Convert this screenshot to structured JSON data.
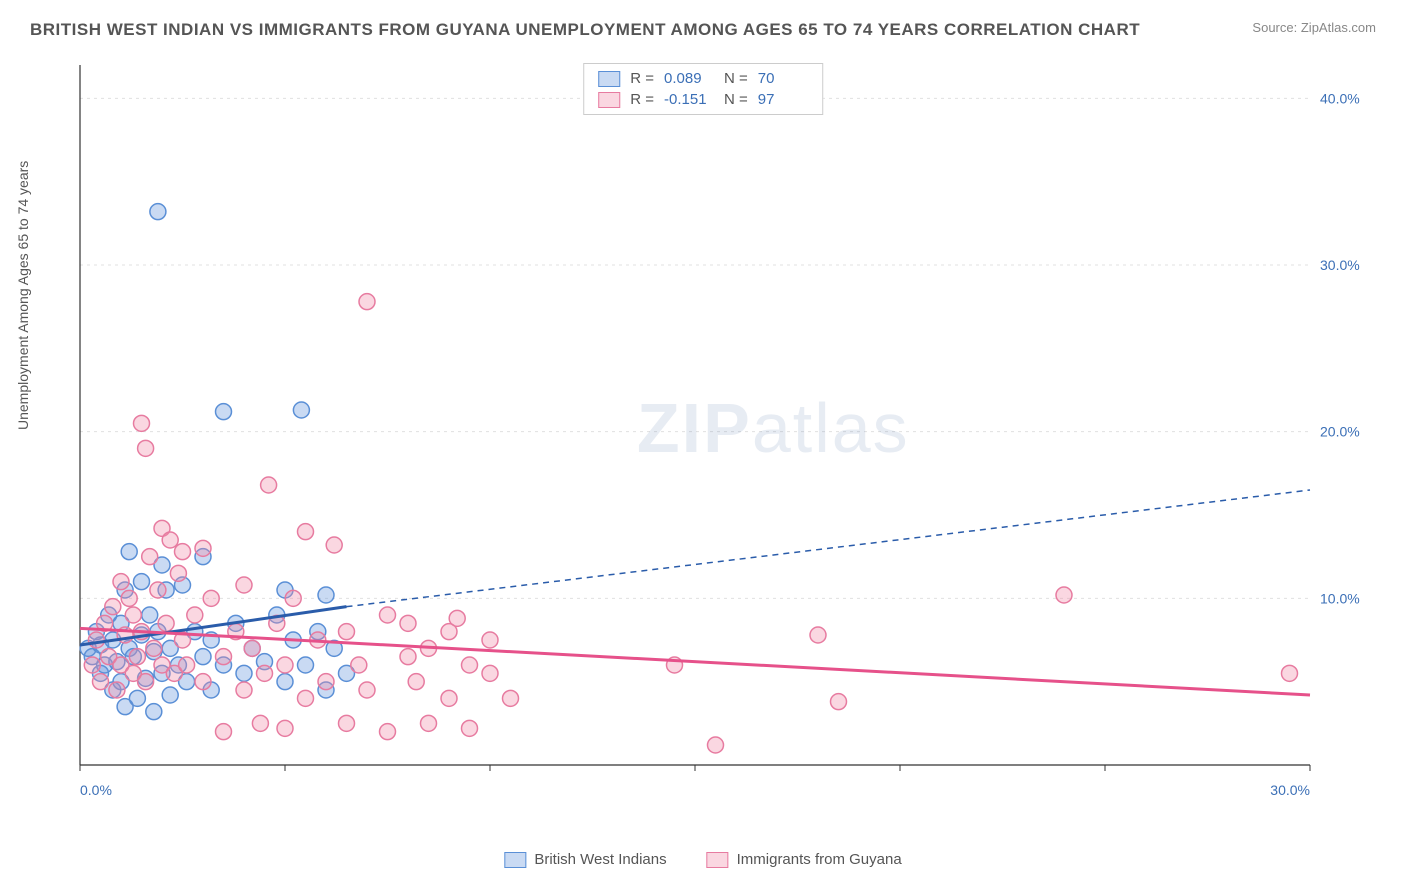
{
  "title": "BRITISH WEST INDIAN VS IMMIGRANTS FROM GUYANA UNEMPLOYMENT AMONG AGES 65 TO 74 YEARS CORRELATION CHART",
  "source_label": "Source:",
  "source_site": "ZipAtlas.com",
  "watermark_bold": "ZIP",
  "watermark_light": "atlas",
  "ylabel": "Unemployment Among Ages 65 to 74 years",
  "chart": {
    "type": "scatter",
    "background_color": "#ffffff",
    "grid_color": "#e0e0e0",
    "axis_color": "#333333",
    "xlim": [
      0,
      30
    ],
    "ylim": [
      0,
      42
    ],
    "xticks": [
      0,
      5,
      10,
      15,
      20,
      25,
      30
    ],
    "xtick_labels": [
      "0.0%",
      "",
      "",
      "",
      "",
      "",
      "30.0%"
    ],
    "yticks": [
      10,
      20,
      30,
      40
    ],
    "ytick_labels": [
      "10.0%",
      "20.0%",
      "30.0%",
      "40.0%"
    ],
    "ytick_color": "#3b6fb6",
    "xtick_color": "#3b6fb6",
    "tick_fontsize": 14,
    "marker_radius": 8,
    "marker_stroke_width": 1.5,
    "trend_solid_width": 3,
    "trend_dash_width": 1.5,
    "trend_dash_pattern": "6,5",
    "series": [
      {
        "name": "British West Indians",
        "fill": "rgba(100,150,220,0.35)",
        "stroke": "#5a8fd6",
        "trend_color": "#2a5caa",
        "R": "0.089",
        "N": "70",
        "trend_solid": {
          "x1": 0,
          "y1": 7.2,
          "x2": 6.5,
          "y2": 9.5
        },
        "trend_dash": {
          "x1": 6.5,
          "y1": 9.5,
          "x2": 30,
          "y2": 16.5
        },
        "points": [
          [
            0.2,
            7
          ],
          [
            0.3,
            6.5
          ],
          [
            0.4,
            8
          ],
          [
            0.5,
            5.5
          ],
          [
            0.5,
            7.2
          ],
          [
            0.6,
            6
          ],
          [
            0.7,
            9
          ],
          [
            0.8,
            4.5
          ],
          [
            0.8,
            7.5
          ],
          [
            0.9,
            6.2
          ],
          [
            1.0,
            8.5
          ],
          [
            1.0,
            5
          ],
          [
            1.1,
            10.5
          ],
          [
            1.1,
            3.5
          ],
          [
            1.2,
            7
          ],
          [
            1.2,
            12.8
          ],
          [
            1.3,
            6.5
          ],
          [
            1.4,
            4
          ],
          [
            1.5,
            11
          ],
          [
            1.5,
            7.8
          ],
          [
            1.6,
            5.2
          ],
          [
            1.7,
            9
          ],
          [
            1.8,
            3.2
          ],
          [
            1.8,
            6.8
          ],
          [
            1.9,
            33.2
          ],
          [
            1.9,
            8
          ],
          [
            2.0,
            5.5
          ],
          [
            2.0,
            12
          ],
          [
            2.1,
            10.5
          ],
          [
            2.2,
            4.2
          ],
          [
            2.2,
            7
          ],
          [
            2.4,
            6
          ],
          [
            2.5,
            10.8
          ],
          [
            2.6,
            5
          ],
          [
            2.8,
            8
          ],
          [
            3.0,
            6.5
          ],
          [
            3.0,
            12.5
          ],
          [
            3.2,
            4.5
          ],
          [
            3.2,
            7.5
          ],
          [
            3.5,
            6
          ],
          [
            3.5,
            21.2
          ],
          [
            3.8,
            8.5
          ],
          [
            4.0,
            5.5
          ],
          [
            4.2,
            7
          ],
          [
            4.5,
            6.2
          ],
          [
            4.8,
            9
          ],
          [
            5.0,
            5
          ],
          [
            5.0,
            10.5
          ],
          [
            5.2,
            7.5
          ],
          [
            5.4,
            21.3
          ],
          [
            5.5,
            6
          ],
          [
            5.8,
            8
          ],
          [
            6.0,
            4.5
          ],
          [
            6.0,
            10.2
          ],
          [
            6.2,
            7
          ],
          [
            6.5,
            5.5
          ]
        ]
      },
      {
        "name": "Immigrants from Guyana",
        "fill": "rgba(240,140,170,0.35)",
        "stroke": "#e77ba0",
        "trend_color": "#e6518a",
        "R": "-0.151",
        "N": "97",
        "trend_solid": {
          "x1": 0,
          "y1": 8.2,
          "x2": 30,
          "y2": 4.2
        },
        "trend_dash": null,
        "points": [
          [
            0.3,
            6
          ],
          [
            0.4,
            7.5
          ],
          [
            0.5,
            5
          ],
          [
            0.6,
            8.5
          ],
          [
            0.7,
            6.5
          ],
          [
            0.8,
            9.5
          ],
          [
            0.9,
            4.5
          ],
          [
            1.0,
            11
          ],
          [
            1.0,
            6
          ],
          [
            1.1,
            7.8
          ],
          [
            1.2,
            10
          ],
          [
            1.3,
            5.5
          ],
          [
            1.3,
            9
          ],
          [
            1.4,
            6.5
          ],
          [
            1.5,
            20.5
          ],
          [
            1.5,
            8
          ],
          [
            1.6,
            19
          ],
          [
            1.6,
            5
          ],
          [
            1.7,
            12.5
          ],
          [
            1.8,
            7
          ],
          [
            1.9,
            10.5
          ],
          [
            2.0,
            14.2
          ],
          [
            2.0,
            6
          ],
          [
            2.1,
            8.5
          ],
          [
            2.2,
            13.5
          ],
          [
            2.3,
            5.5
          ],
          [
            2.4,
            11.5
          ],
          [
            2.5,
            7.5
          ],
          [
            2.5,
            12.8
          ],
          [
            2.6,
            6
          ],
          [
            2.8,
            9
          ],
          [
            3.0,
            13
          ],
          [
            3.0,
            5
          ],
          [
            3.2,
            10
          ],
          [
            3.5,
            6.5
          ],
          [
            3.5,
            2
          ],
          [
            3.8,
            8
          ],
          [
            4.0,
            4.5
          ],
          [
            4.0,
            10.8
          ],
          [
            4.2,
            7
          ],
          [
            4.4,
            2.5
          ],
          [
            4.5,
            5.5
          ],
          [
            4.6,
            16.8
          ],
          [
            4.8,
            8.5
          ],
          [
            5.0,
            6
          ],
          [
            5.0,
            2.2
          ],
          [
            5.2,
            10
          ],
          [
            5.5,
            4
          ],
          [
            5.5,
            14
          ],
          [
            5.8,
            7.5
          ],
          [
            6.0,
            5
          ],
          [
            6.2,
            13.2
          ],
          [
            6.5,
            8
          ],
          [
            6.5,
            2.5
          ],
          [
            6.8,
            6
          ],
          [
            7.0,
            27.8
          ],
          [
            7.0,
            4.5
          ],
          [
            7.5,
            9
          ],
          [
            7.5,
            2
          ],
          [
            8.0,
            6.5
          ],
          [
            8.0,
            8.5
          ],
          [
            8.2,
            5
          ],
          [
            8.5,
            7
          ],
          [
            8.5,
            2.5
          ],
          [
            9.0,
            8
          ],
          [
            9.0,
            4
          ],
          [
            9.2,
            8.8
          ],
          [
            9.5,
            6
          ],
          [
            9.5,
            2.2
          ],
          [
            10.0,
            5.5
          ],
          [
            10.0,
            7.5
          ],
          [
            10.5,
            4
          ],
          [
            14.5,
            6
          ],
          [
            15.5,
            1.2
          ],
          [
            18.0,
            7.8
          ],
          [
            18.5,
            3.8
          ],
          [
            24.0,
            10.2
          ],
          [
            29.5,
            5.5
          ]
        ]
      }
    ]
  },
  "legend_bottom": [
    "British West Indians",
    "Immigrants from Guyana"
  ],
  "stats_labels": {
    "R": "R =",
    "N": "N ="
  }
}
